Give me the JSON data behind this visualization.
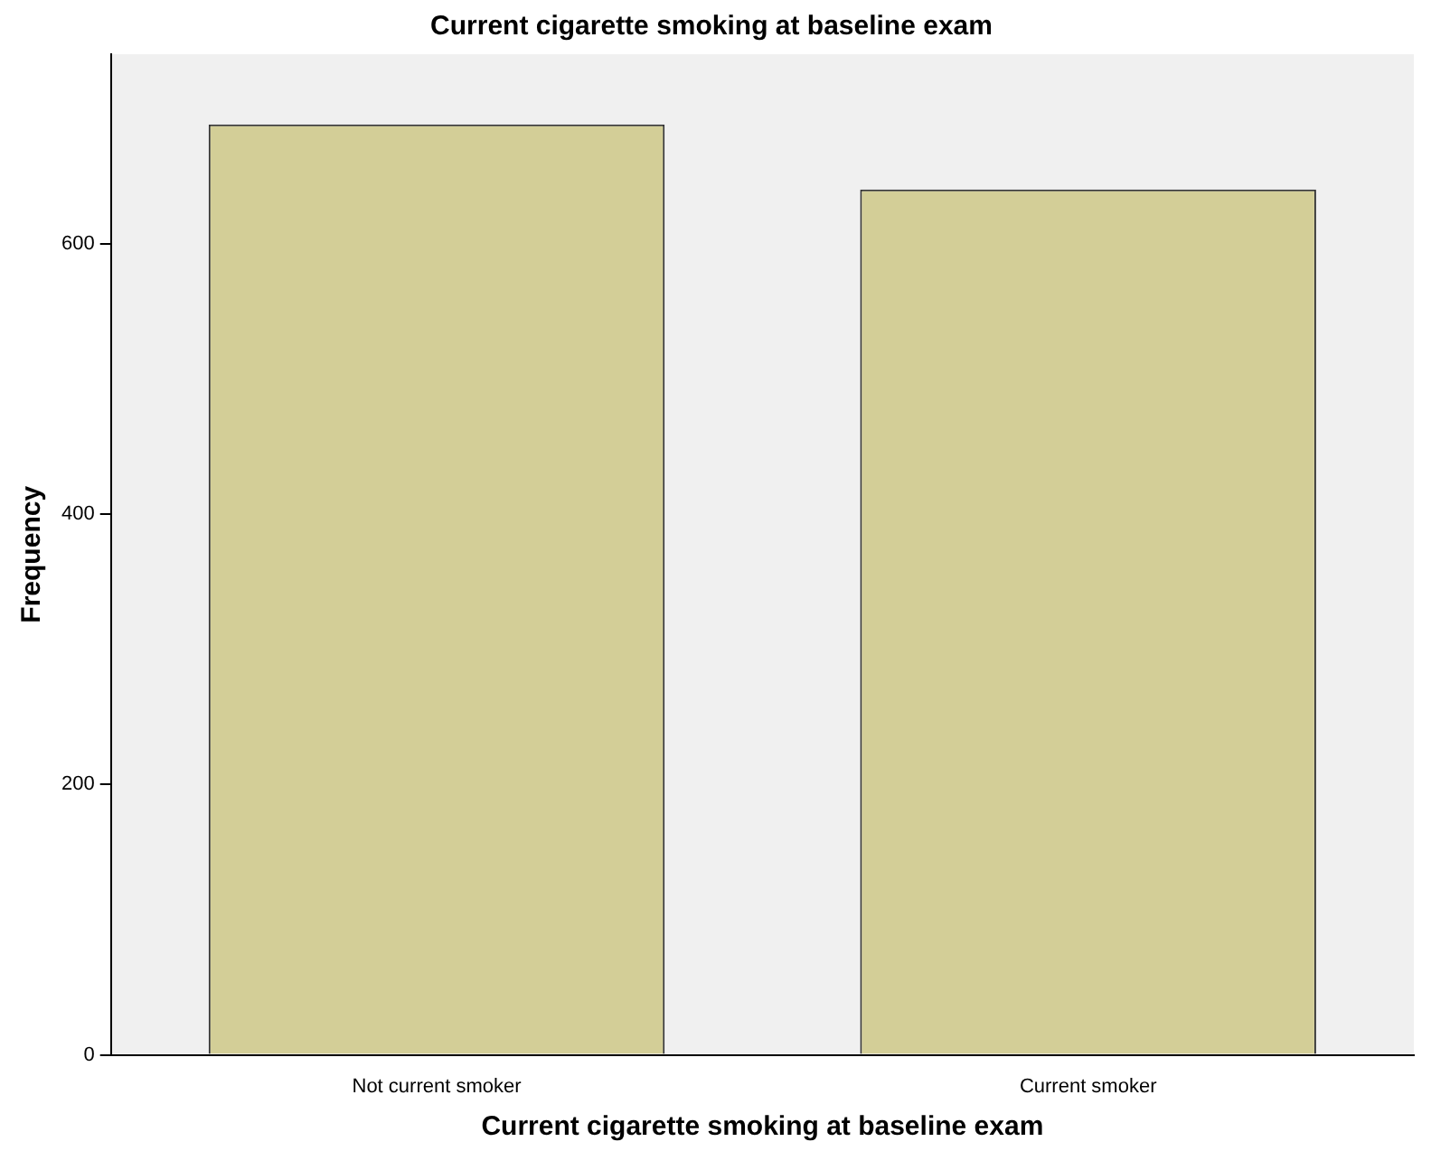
{
  "chart_data": {
    "type": "bar",
    "title": "Current cigarette smoking at baseline exam",
    "xlabel": "Current cigarette smoking at baseline exam",
    "ylabel": "Frequency",
    "categories": [
      "Not current smoker",
      "Current smoker"
    ],
    "values": [
      688,
      640
    ],
    "color": "#d3ce97",
    "ylim": [
      0,
      740
    ],
    "yticks": [
      0,
      200,
      400,
      600
    ],
    "grid": false,
    "legend": false
  }
}
